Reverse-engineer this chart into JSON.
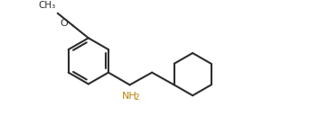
{
  "bg_color": "#ffffff",
  "line_color": "#2d2d2d",
  "line_width": 1.5,
  "nh2_color": "#b8860b",
  "figsize": [
    3.53,
    1.39
  ],
  "dpi": 100,
  "xlim": [
    0,
    10
  ],
  "ylim": [
    0,
    4
  ]
}
